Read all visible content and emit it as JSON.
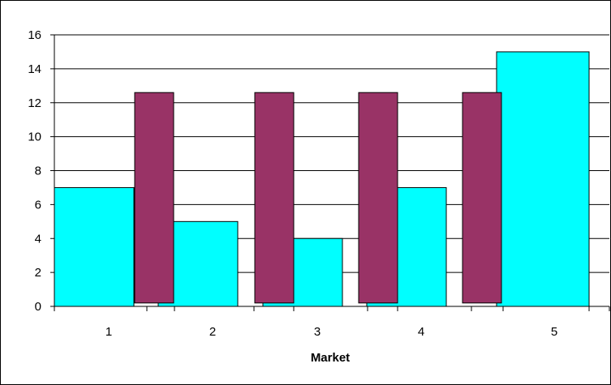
{
  "chart_data": {
    "type": "bar",
    "title": "",
    "xlabel": "Market",
    "ylabel": "",
    "ylim": [
      0,
      16
    ],
    "y_tick_step": 2,
    "y_ticks": [
      "0",
      "2",
      "4",
      "6",
      "8",
      "10",
      "12",
      "14",
      "16"
    ],
    "grid": "horizontal major gridlines",
    "legend": "none",
    "categories": [
      "1",
      "2",
      "3",
      "4",
      "5"
    ],
    "series": [
      {
        "values": [
          7,
          5,
          4,
          7,
          15
        ],
        "color": "#00FFFF",
        "shape": "wide bar"
      },
      {
        "values": [
          12.6,
          12.6,
          12.6,
          12.6
        ],
        "base": 0.2,
        "positions": [
          "between 1 and 2",
          "between 2 and 3",
          "between 3 and 4",
          "between 4 and 5"
        ],
        "color": "#993366",
        "shape": "narrow floating bar"
      }
    ]
  }
}
